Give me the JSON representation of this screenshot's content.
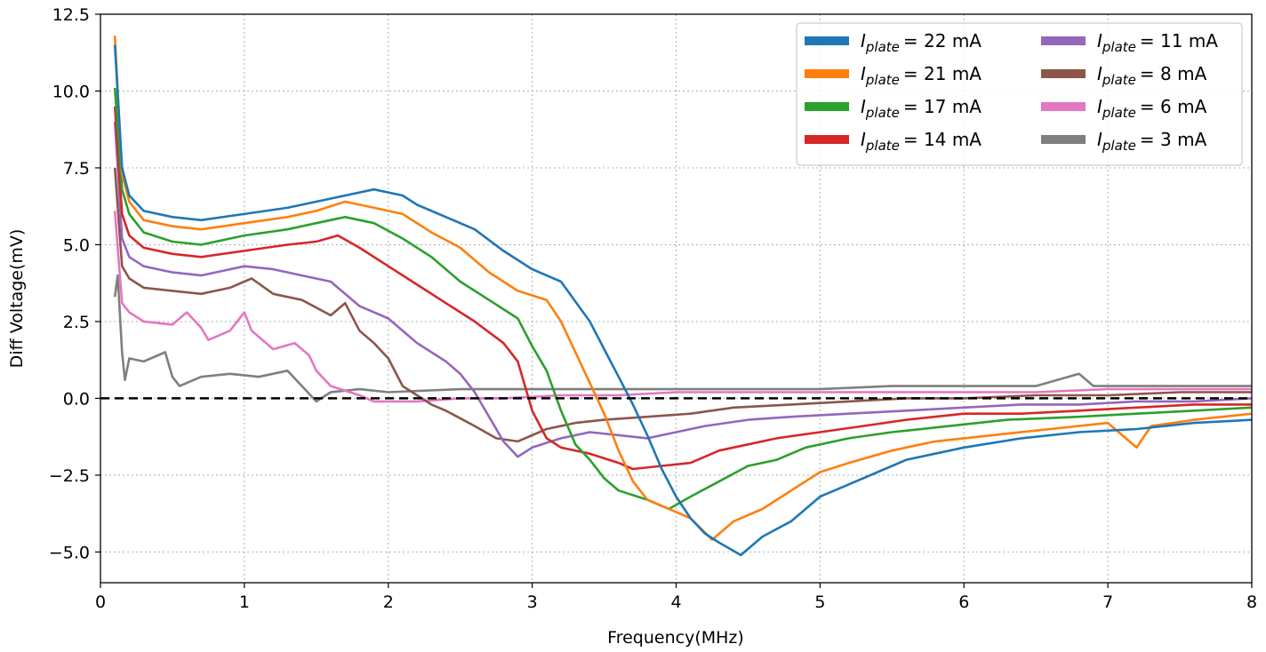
{
  "chart_data": {
    "type": "line",
    "xlabel": "Frequency(MHz)",
    "ylabel": "Diff Voltage(mV)",
    "xlim": [
      0,
      8
    ],
    "ylim": [
      -6,
      12.5
    ],
    "xticks": [
      0,
      1,
      2,
      3,
      4,
      5,
      6,
      7,
      8
    ],
    "yticks": [
      -5.0,
      -2.5,
      0.0,
      2.5,
      5.0,
      7.5,
      10.0,
      12.5
    ],
    "xtick_labels": [
      "0",
      "1",
      "2",
      "3",
      "4",
      "5",
      "6",
      "7",
      "8"
    ],
    "ytick_labels": [
      "−5.0",
      "−2.5",
      "0.0",
      "2.5",
      "5.0",
      "7.5",
      "10.0",
      "12.5"
    ],
    "grid": true,
    "legend_position": "top-right",
    "reference_line": {
      "y": 0,
      "style": "dashed",
      "color": "#000000"
    },
    "series": [
      {
        "name": "I_plate = 22 mA",
        "symbol": "I",
        "subscript": "plate",
        "value": "= 22 mA",
        "color": "#1f77b4",
        "points": [
          [
            0.1,
            11.5
          ],
          [
            0.15,
            7.5
          ],
          [
            0.2,
            6.6
          ],
          [
            0.3,
            6.1
          ],
          [
            0.5,
            5.9
          ],
          [
            0.7,
            5.8
          ],
          [
            1.0,
            6.0
          ],
          [
            1.3,
            6.2
          ],
          [
            1.5,
            6.4
          ],
          [
            1.7,
            6.6
          ],
          [
            1.9,
            6.8
          ],
          [
            2.1,
            6.6
          ],
          [
            2.2,
            6.3
          ],
          [
            2.4,
            5.9
          ],
          [
            2.6,
            5.5
          ],
          [
            2.8,
            4.8
          ],
          [
            3.0,
            4.2
          ],
          [
            3.2,
            3.8
          ],
          [
            3.4,
            2.5
          ],
          [
            3.5,
            1.6
          ],
          [
            3.6,
            0.7
          ],
          [
            3.7,
            -0.2
          ],
          [
            3.8,
            -1.2
          ],
          [
            3.9,
            -2.3
          ],
          [
            4.0,
            -3.2
          ],
          [
            4.1,
            -3.9
          ],
          [
            4.2,
            -4.4
          ],
          [
            4.3,
            -4.7
          ],
          [
            4.45,
            -5.1
          ],
          [
            4.6,
            -4.5
          ],
          [
            4.8,
            -4.0
          ],
          [
            5.0,
            -3.2
          ],
          [
            5.2,
            -2.8
          ],
          [
            5.4,
            -2.4
          ],
          [
            5.6,
            -2.0
          ],
          [
            5.8,
            -1.8
          ],
          [
            6.0,
            -1.6
          ],
          [
            6.4,
            -1.3
          ],
          [
            6.8,
            -1.1
          ],
          [
            7.2,
            -1.0
          ],
          [
            7.6,
            -0.8
          ],
          [
            8.0,
            -0.7
          ]
        ]
      },
      {
        "name": "I_plate = 21 mA",
        "symbol": "I",
        "subscript": "plate",
        "value": "= 21 mA",
        "color": "#ff7f0e",
        "points": [
          [
            0.1,
            11.8
          ],
          [
            0.15,
            7.3
          ],
          [
            0.2,
            6.4
          ],
          [
            0.3,
            5.8
          ],
          [
            0.5,
            5.6
          ],
          [
            0.7,
            5.5
          ],
          [
            1.0,
            5.7
          ],
          [
            1.3,
            5.9
          ],
          [
            1.5,
            6.1
          ],
          [
            1.7,
            6.4
          ],
          [
            1.9,
            6.2
          ],
          [
            2.1,
            6.0
          ],
          [
            2.3,
            5.4
          ],
          [
            2.5,
            4.9
          ],
          [
            2.7,
            4.1
          ],
          [
            2.9,
            3.5
          ],
          [
            3.1,
            3.2
          ],
          [
            3.2,
            2.5
          ],
          [
            3.3,
            1.5
          ],
          [
            3.4,
            0.5
          ],
          [
            3.5,
            -0.5
          ],
          [
            3.6,
            -1.7
          ],
          [
            3.7,
            -2.7
          ],
          [
            3.8,
            -3.3
          ],
          [
            3.9,
            -3.5
          ],
          [
            4.1,
            -3.9
          ],
          [
            4.25,
            -4.6
          ],
          [
            4.4,
            -4.0
          ],
          [
            4.6,
            -3.6
          ],
          [
            4.8,
            -3.0
          ],
          [
            5.0,
            -2.4
          ],
          [
            5.2,
            -2.1
          ],
          [
            5.5,
            -1.7
          ],
          [
            5.8,
            -1.4
          ],
          [
            6.2,
            -1.2
          ],
          [
            6.6,
            -1.0
          ],
          [
            7.0,
            -0.8
          ],
          [
            7.2,
            -1.6
          ],
          [
            7.3,
            -0.9
          ],
          [
            7.6,
            -0.7
          ],
          [
            8.0,
            -0.5
          ]
        ]
      },
      {
        "name": "I_plate = 17 mA",
        "symbol": "I",
        "subscript": "plate",
        "value": "= 17 mA",
        "color": "#2ca02c",
        "points": [
          [
            0.1,
            10.1
          ],
          [
            0.15,
            6.8
          ],
          [
            0.2,
            6.0
          ],
          [
            0.3,
            5.4
          ],
          [
            0.5,
            5.1
          ],
          [
            0.7,
            5.0
          ],
          [
            1.0,
            5.3
          ],
          [
            1.3,
            5.5
          ],
          [
            1.5,
            5.7
          ],
          [
            1.7,
            5.9
          ],
          [
            1.9,
            5.7
          ],
          [
            2.1,
            5.2
          ],
          [
            2.3,
            4.6
          ],
          [
            2.5,
            3.8
          ],
          [
            2.7,
            3.2
          ],
          [
            2.9,
            2.6
          ],
          [
            3.0,
            1.7
          ],
          [
            3.1,
            0.9
          ],
          [
            3.2,
            -0.4
          ],
          [
            3.3,
            -1.5
          ],
          [
            3.4,
            -2.0
          ],
          [
            3.5,
            -2.6
          ],
          [
            3.6,
            -3.0
          ],
          [
            3.8,
            -3.3
          ],
          [
            3.95,
            -3.6
          ],
          [
            4.1,
            -3.2
          ],
          [
            4.3,
            -2.7
          ],
          [
            4.5,
            -2.2
          ],
          [
            4.7,
            -2.0
          ],
          [
            4.9,
            -1.6
          ],
          [
            5.2,
            -1.3
          ],
          [
            5.5,
            -1.1
          ],
          [
            5.9,
            -0.9
          ],
          [
            6.3,
            -0.7
          ],
          [
            6.8,
            -0.6
          ],
          [
            7.2,
            -0.5
          ],
          [
            7.6,
            -0.4
          ],
          [
            8.0,
            -0.3
          ]
        ]
      },
      {
        "name": "I_plate = 14 mA",
        "symbol": "I",
        "subscript": "plate",
        "value": "= 14 mA",
        "color": "#d62728",
        "points": [
          [
            0.1,
            9.5
          ],
          [
            0.15,
            6.0
          ],
          [
            0.2,
            5.3
          ],
          [
            0.3,
            4.9
          ],
          [
            0.5,
            4.7
          ],
          [
            0.7,
            4.6
          ],
          [
            1.0,
            4.8
          ],
          [
            1.3,
            5.0
          ],
          [
            1.5,
            5.1
          ],
          [
            1.65,
            5.3
          ],
          [
            1.8,
            4.9
          ],
          [
            2.0,
            4.3
          ],
          [
            2.2,
            3.7
          ],
          [
            2.4,
            3.1
          ],
          [
            2.6,
            2.5
          ],
          [
            2.8,
            1.8
          ],
          [
            2.9,
            1.2
          ],
          [
            3.0,
            -0.4
          ],
          [
            3.1,
            -1.3
          ],
          [
            3.2,
            -1.6
          ],
          [
            3.4,
            -1.8
          ],
          [
            3.6,
            -2.1
          ],
          [
            3.7,
            -2.3
          ],
          [
            3.9,
            -2.2
          ],
          [
            4.1,
            -2.1
          ],
          [
            4.3,
            -1.7
          ],
          [
            4.5,
            -1.5
          ],
          [
            4.7,
            -1.3
          ],
          [
            5.0,
            -1.1
          ],
          [
            5.3,
            -0.9
          ],
          [
            5.6,
            -0.7
          ],
          [
            6.0,
            -0.5
          ],
          [
            6.4,
            -0.5
          ],
          [
            6.8,
            -0.4
          ],
          [
            7.2,
            -0.3
          ],
          [
            7.6,
            -0.2
          ],
          [
            8.0,
            -0.2
          ]
        ]
      },
      {
        "name": "I_plate = 11 mA",
        "symbol": "I",
        "subscript": "plate",
        "value": "= 11 mA",
        "color": "#9467bd",
        "points": [
          [
            0.1,
            9.0
          ],
          [
            0.15,
            5.2
          ],
          [
            0.2,
            4.6
          ],
          [
            0.3,
            4.3
          ],
          [
            0.5,
            4.1
          ],
          [
            0.7,
            4.0
          ],
          [
            1.0,
            4.3
          ],
          [
            1.2,
            4.2
          ],
          [
            1.4,
            4.0
          ],
          [
            1.6,
            3.8
          ],
          [
            1.8,
            3.0
          ],
          [
            2.0,
            2.6
          ],
          [
            2.2,
            1.8
          ],
          [
            2.4,
            1.2
          ],
          [
            2.5,
            0.8
          ],
          [
            2.6,
            0.2
          ],
          [
            2.7,
            -0.6
          ],
          [
            2.8,
            -1.4
          ],
          [
            2.9,
            -1.9
          ],
          [
            3.0,
            -1.6
          ],
          [
            3.2,
            -1.3
          ],
          [
            3.4,
            -1.1
          ],
          [
            3.6,
            -1.2
          ],
          [
            3.8,
            -1.3
          ],
          [
            4.0,
            -1.1
          ],
          [
            4.2,
            -0.9
          ],
          [
            4.5,
            -0.7
          ],
          [
            4.8,
            -0.6
          ],
          [
            5.2,
            -0.5
          ],
          [
            5.6,
            -0.4
          ],
          [
            6.0,
            -0.3
          ],
          [
            6.4,
            -0.2
          ],
          [
            6.8,
            -0.2
          ],
          [
            7.2,
            -0.1
          ],
          [
            7.6,
            -0.1
          ],
          [
            8.0,
            0.0
          ]
        ]
      },
      {
        "name": "I_plate = 8 mA",
        "symbol": "I",
        "subscript": "plate",
        "value": "= 8 mA",
        "color": "#8c564b",
        "points": [
          [
            0.1,
            7.5
          ],
          [
            0.15,
            4.3
          ],
          [
            0.2,
            3.9
          ],
          [
            0.3,
            3.6
          ],
          [
            0.5,
            3.5
          ],
          [
            0.7,
            3.4
          ],
          [
            0.9,
            3.6
          ],
          [
            1.05,
            3.9
          ],
          [
            1.2,
            3.4
          ],
          [
            1.4,
            3.2
          ],
          [
            1.6,
            2.7
          ],
          [
            1.7,
            3.1
          ],
          [
            1.8,
            2.2
          ],
          [
            1.9,
            1.8
          ],
          [
            2.0,
            1.3
          ],
          [
            2.1,
            0.4
          ],
          [
            2.2,
            0.1
          ],
          [
            2.3,
            -0.2
          ],
          [
            2.4,
            -0.4
          ],
          [
            2.6,
            -0.9
          ],
          [
            2.75,
            -1.3
          ],
          [
            2.9,
            -1.4
          ],
          [
            3.1,
            -1.0
          ],
          [
            3.3,
            -0.8
          ],
          [
            3.5,
            -0.7
          ],
          [
            3.8,
            -0.6
          ],
          [
            4.1,
            -0.5
          ],
          [
            4.4,
            -0.3
          ],
          [
            4.8,
            -0.2
          ],
          [
            5.2,
            -0.1
          ],
          [
            5.6,
            0.0
          ],
          [
            6.0,
            0.0
          ],
          [
            6.5,
            0.1
          ],
          [
            7.0,
            0.1
          ],
          [
            7.5,
            0.2
          ],
          [
            8.0,
            0.2
          ]
        ]
      },
      {
        "name": "I_plate = 6 mA",
        "symbol": "I",
        "subscript": "plate",
        "value": "= 6 mA",
        "color": "#e377c2",
        "points": [
          [
            0.1,
            6.1
          ],
          [
            0.15,
            3.1
          ],
          [
            0.2,
            2.8
          ],
          [
            0.3,
            2.5
          ],
          [
            0.5,
            2.4
          ],
          [
            0.6,
            2.8
          ],
          [
            0.7,
            2.3
          ],
          [
            0.75,
            1.9
          ],
          [
            0.9,
            2.2
          ],
          [
            1.0,
            2.8
          ],
          [
            1.05,
            2.2
          ],
          [
            1.2,
            1.6
          ],
          [
            1.35,
            1.8
          ],
          [
            1.45,
            1.4
          ],
          [
            1.5,
            0.9
          ],
          [
            1.6,
            0.4
          ],
          [
            1.8,
            0.1
          ],
          [
            1.9,
            -0.1
          ],
          [
            2.2,
            -0.1
          ],
          [
            2.5,
            0.0
          ],
          [
            2.8,
            0.0
          ],
          [
            3.2,
            0.1
          ],
          [
            3.6,
            0.1
          ],
          [
            4.0,
            0.2
          ],
          [
            4.5,
            0.2
          ],
          [
            5.0,
            0.2
          ],
          [
            5.5,
            0.2
          ],
          [
            6.0,
            0.2
          ],
          [
            6.5,
            0.2
          ],
          [
            7.0,
            0.3
          ],
          [
            7.5,
            0.3
          ],
          [
            8.0,
            0.3
          ]
        ]
      },
      {
        "name": "I_plate = 3 mA",
        "symbol": "I",
        "subscript": "plate",
        "value": "= 3 mA",
        "color": "#7f7f7f",
        "points": [
          [
            0.1,
            3.3
          ],
          [
            0.12,
            4.0
          ],
          [
            0.15,
            1.5
          ],
          [
            0.17,
            0.6
          ],
          [
            0.2,
            1.3
          ],
          [
            0.3,
            1.2
          ],
          [
            0.45,
            1.5
          ],
          [
            0.5,
            0.7
          ],
          [
            0.55,
            0.4
          ],
          [
            0.7,
            0.7
          ],
          [
            0.9,
            0.8
          ],
          [
            1.1,
            0.7
          ],
          [
            1.3,
            0.9
          ],
          [
            1.4,
            0.4
          ],
          [
            1.5,
            -0.1
          ],
          [
            1.6,
            0.2
          ],
          [
            1.8,
            0.3
          ],
          [
            2.0,
            0.2
          ],
          [
            2.5,
            0.3
          ],
          [
            3.0,
            0.3
          ],
          [
            3.5,
            0.3
          ],
          [
            4.0,
            0.3
          ],
          [
            4.5,
            0.3
          ],
          [
            5.0,
            0.3
          ],
          [
            5.5,
            0.4
          ],
          [
            6.0,
            0.4
          ],
          [
            6.5,
            0.4
          ],
          [
            6.8,
            0.8
          ],
          [
            6.9,
            0.4
          ],
          [
            7.0,
            0.4
          ],
          [
            7.5,
            0.4
          ],
          [
            8.0,
            0.4
          ]
        ]
      }
    ]
  }
}
